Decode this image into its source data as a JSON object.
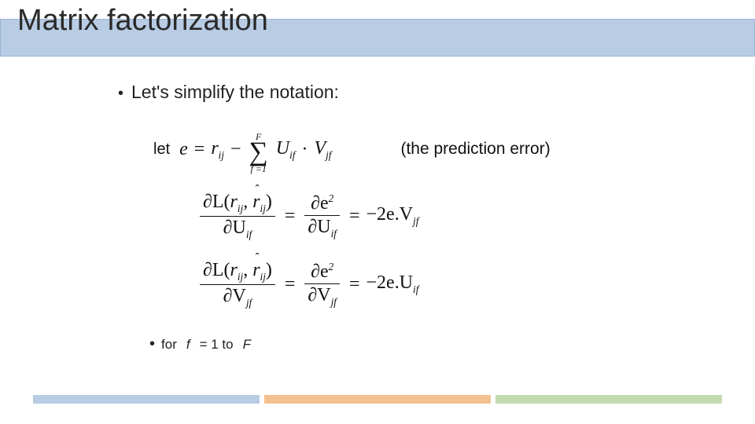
{
  "title": "Matrix factorization",
  "bullet_main": "Let's simplify the notation:",
  "eq1": {
    "let": "let",
    "e": "e",
    "eq": "=",
    "r": "r",
    "ij": "ij",
    "minus": "−",
    "sum_top": "F",
    "sum_bot": "f =1",
    "U": "U",
    "if": "if",
    "dot": "·",
    "V": "V",
    "jf": "jf",
    "note": "(the prediction error)"
  },
  "eqfrac": {
    "dL": "∂L",
    "open": "(",
    "r": "r",
    "ij": "ij",
    "comma": ",",
    "rhat": "r",
    "close": ")",
    "dU": "∂U",
    "dV": "∂V",
    "if": "if",
    "jf": "jf",
    "eq": "=",
    "de2": "∂e",
    "sq": "2",
    "result_U_pre": "−2e.V",
    "result_V_pre": "−2e.U"
  },
  "sub_bullet": {
    "for": "for",
    "f": "f",
    "eqtxt": "= 1 to",
    "F": "F"
  },
  "colors": {
    "band": "#b8cce4",
    "band_border": "#98b6d6",
    "footer1": "#b8cce4",
    "footer2": "#f3c090",
    "footer3": "#c4dab0"
  }
}
